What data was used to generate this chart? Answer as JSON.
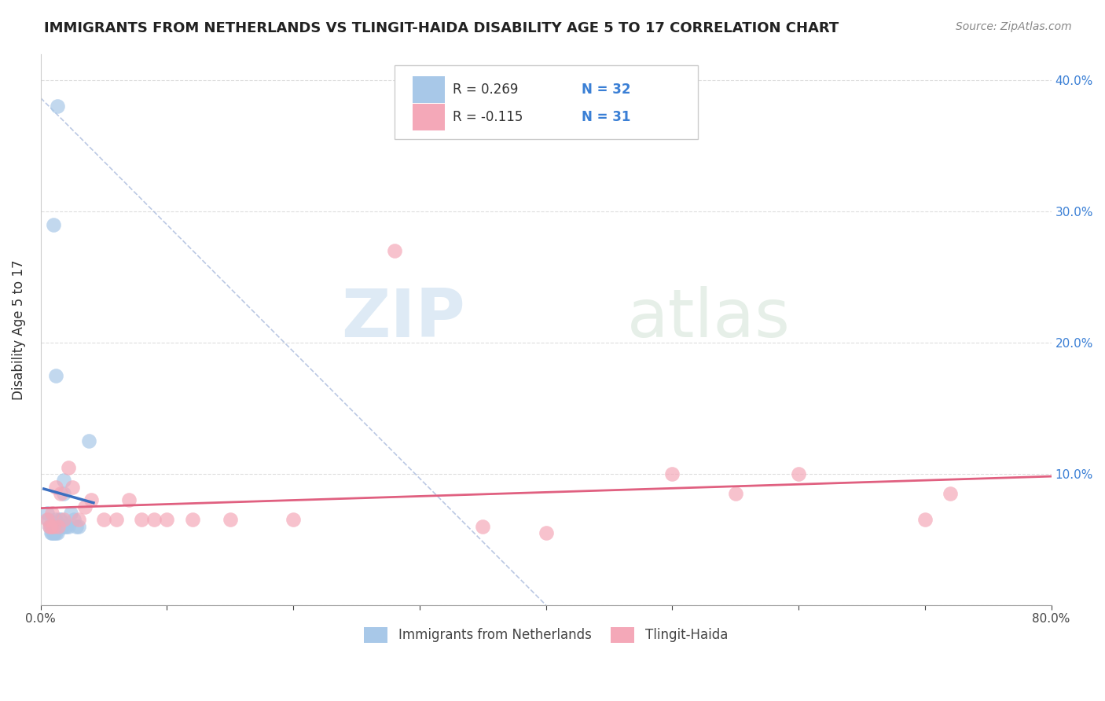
{
  "title": "IMMIGRANTS FROM NETHERLANDS VS TLINGIT-HAIDA DISABILITY AGE 5 TO 17 CORRELATION CHART",
  "source_text": "Source: ZipAtlas.com",
  "ylabel": "Disability Age 5 to 17",
  "xlim": [
    0,
    0.8
  ],
  "ylim": [
    0,
    0.42
  ],
  "legend_r1": "R = 0.269",
  "legend_n1": "N = 32",
  "legend_r2": "R = -0.115",
  "legend_n2": "N = 31",
  "color_blue": "#A8C8E8",
  "color_pink": "#F4A8B8",
  "line_blue": "#3A6FC0",
  "line_pink": "#E06080",
  "background_color": "#FFFFFF",
  "grid_color": "#DDDDDD",
  "blue_scatter_x": [
    0.005,
    0.006,
    0.007,
    0.008,
    0.008,
    0.009,
    0.009,
    0.01,
    0.01,
    0.011,
    0.011,
    0.012,
    0.012,
    0.013,
    0.014,
    0.015,
    0.015,
    0.016,
    0.017,
    0.018,
    0.018,
    0.019,
    0.02,
    0.022,
    0.024,
    0.026,
    0.028,
    0.03,
    0.038,
    0.012,
    0.01,
    0.013
  ],
  "blue_scatter_y": [
    0.07,
    0.065,
    0.06,
    0.06,
    0.055,
    0.055,
    0.06,
    0.06,
    0.055,
    0.055,
    0.06,
    0.065,
    0.055,
    0.055,
    0.06,
    0.065,
    0.06,
    0.065,
    0.06,
    0.095,
    0.085,
    0.06,
    0.06,
    0.06,
    0.07,
    0.065,
    0.06,
    0.06,
    0.125,
    0.175,
    0.29,
    0.38
  ],
  "pink_scatter_x": [
    0.005,
    0.007,
    0.008,
    0.009,
    0.01,
    0.012,
    0.014,
    0.016,
    0.018,
    0.022,
    0.025,
    0.03,
    0.035,
    0.04,
    0.05,
    0.06,
    0.07,
    0.08,
    0.09,
    0.1,
    0.12,
    0.15,
    0.2,
    0.28,
    0.35,
    0.4,
    0.5,
    0.6,
    0.7,
    0.72,
    0.55
  ],
  "pink_scatter_y": [
    0.065,
    0.06,
    0.06,
    0.07,
    0.06,
    0.09,
    0.06,
    0.085,
    0.065,
    0.105,
    0.09,
    0.065,
    0.075,
    0.08,
    0.065,
    0.065,
    0.08,
    0.065,
    0.065,
    0.065,
    0.065,
    0.065,
    0.065,
    0.27,
    0.06,
    0.055,
    0.1,
    0.1,
    0.065,
    0.085,
    0.085
  ]
}
